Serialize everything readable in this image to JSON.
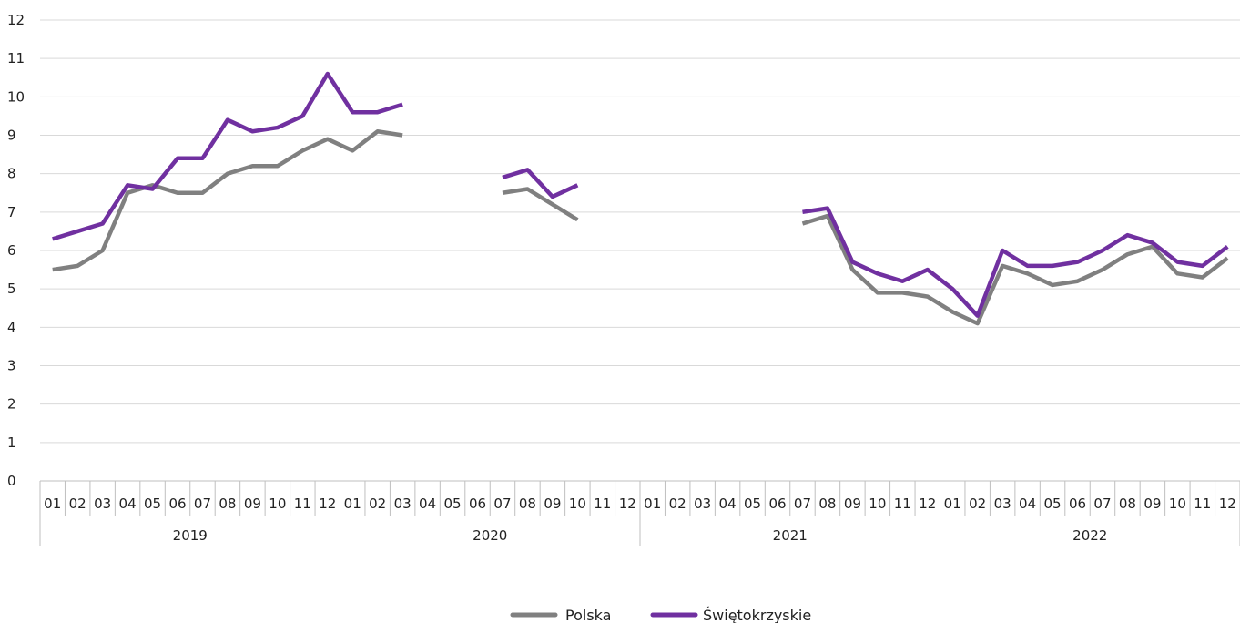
{
  "chart_data": {
    "type": "line",
    "title": "",
    "xlabel": "",
    "ylabel": "",
    "ylim": [
      0,
      12
    ],
    "yticks": [
      "0",
      "1",
      "2",
      "3",
      "4",
      "5",
      "6",
      "7",
      "8",
      "9",
      "10",
      "11",
      "12"
    ],
    "grid": true,
    "legend_position": "bottom-center",
    "months": [
      "01",
      "02",
      "03",
      "04",
      "05",
      "06",
      "07",
      "08",
      "09",
      "10",
      "11",
      "12"
    ],
    "years": [
      "2019",
      "2020",
      "2021",
      "2022"
    ],
    "series": [
      {
        "name": "Polska",
        "color": "#808080",
        "values": [
          5.5,
          5.6,
          6.0,
          7.5,
          7.7,
          7.5,
          7.5,
          8.0,
          8.2,
          8.2,
          8.6,
          8.9,
          8.6,
          9.1,
          9.0,
          null,
          null,
          null,
          7.5,
          7.6,
          7.2,
          6.8,
          null,
          null,
          null,
          null,
          null,
          null,
          null,
          null,
          6.7,
          6.9,
          5.5,
          4.9,
          4.9,
          4.8,
          4.4,
          4.1,
          5.6,
          5.4,
          5.1,
          5.2,
          5.5,
          5.9,
          6.1,
          5.4,
          5.3,
          5.8
        ]
      },
      {
        "name": "Świętokrzyskie",
        "color": "#7030a0",
        "values": [
          6.3,
          6.5,
          6.7,
          7.7,
          7.6,
          8.4,
          8.4,
          9.4,
          9.1,
          9.2,
          9.5,
          10.6,
          9.6,
          9.6,
          9.8,
          null,
          null,
          null,
          7.9,
          8.1,
          7.4,
          7.7,
          null,
          null,
          null,
          null,
          null,
          null,
          null,
          null,
          7.0,
          7.1,
          5.7,
          5.4,
          5.2,
          5.5,
          5.0,
          4.3,
          6.0,
          5.6,
          5.6,
          5.7,
          6.0,
          6.4,
          6.2,
          5.7,
          5.6,
          6.1
        ]
      }
    ]
  }
}
